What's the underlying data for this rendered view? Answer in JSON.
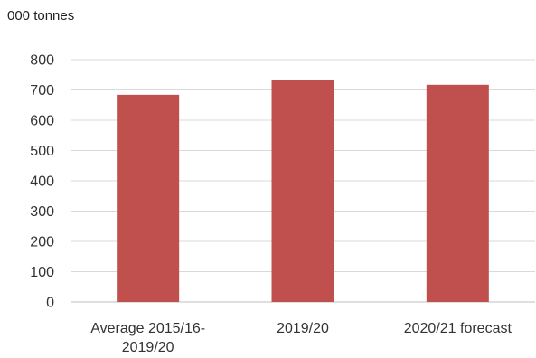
{
  "chart_data": {
    "type": "bar",
    "ylabel": "000 tonnes",
    "categories": [
      [
        "Average 2015/16-",
        "2019/20"
      ],
      [
        "2019/20"
      ],
      [
        "2020/21 forecast"
      ]
    ],
    "values": [
      684,
      732,
      717
    ],
    "ylim": [
      0,
      800
    ],
    "yticks": [
      0,
      100,
      200,
      300,
      400,
      500,
      600,
      700,
      800
    ],
    "bar_color": "#c0504d",
    "grid": true,
    "legend": "none"
  }
}
